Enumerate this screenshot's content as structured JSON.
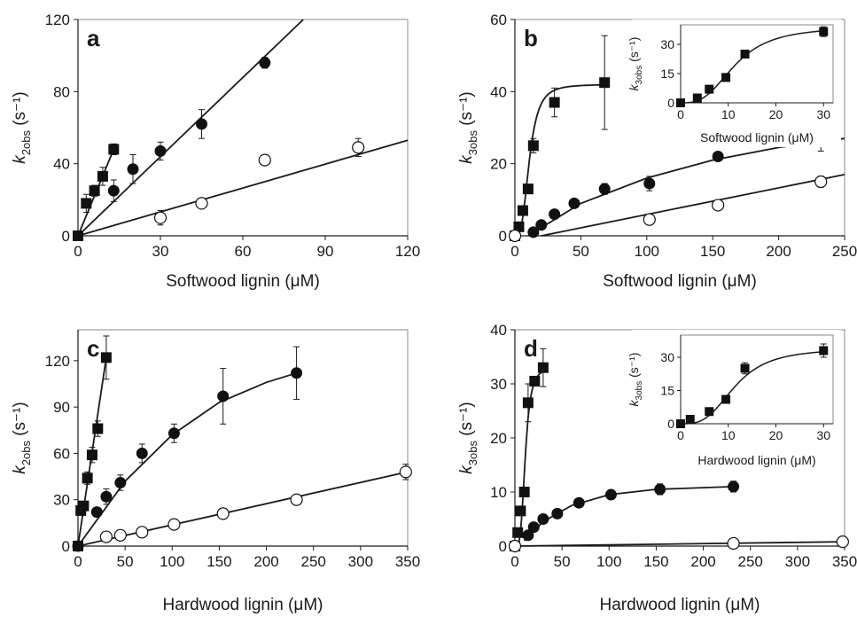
{
  "colors": {
    "axis": "#1a1a1a",
    "marker_filled": "#111111",
    "marker_open_fill": "#ffffff"
  },
  "chart_data": [
    {
      "panel_label": "a",
      "type": "scatter",
      "xlabel": "Softwood lignin (μM)",
      "ylabel_main": "k",
      "ylabel_sub": "2obs",
      "ylabel_unit": " (s⁻¹)",
      "xlim": [
        0,
        120
      ],
      "ylim": [
        0,
        120
      ],
      "xticks": [
        0,
        30,
        60,
        90,
        120
      ],
      "yticks": [
        0,
        40,
        80,
        120
      ],
      "series": [
        {
          "marker": "square",
          "x": [
            0,
            3,
            6,
            9,
            13
          ],
          "y": [
            0,
            18,
            25,
            33,
            48
          ],
          "err": [
            0,
            5,
            3,
            5,
            3
          ],
          "fit": {
            "kind": "line",
            "x": [
              0,
              13
            ],
            "y": [
              0,
              48
            ]
          }
        },
        {
          "marker": "circle",
          "x": [
            13,
            20,
            30,
            45,
            68
          ],
          "y": [
            25,
            37,
            47,
            62,
            96
          ],
          "err": [
            6,
            8,
            5,
            8,
            3
          ],
          "fit": {
            "kind": "line",
            "x": [
              0,
              82
            ],
            "y": [
              0,
              120
            ]
          }
        },
        {
          "marker": "open-circle",
          "x": [
            30,
            45,
            68,
            102
          ],
          "y": [
            10,
            18,
            42,
            49
          ],
          "err": [
            4,
            0,
            0,
            5
          ],
          "fit": {
            "kind": "line",
            "x": [
              0,
              120
            ],
            "y": [
              0,
              53
            ]
          }
        }
      ]
    },
    {
      "panel_label": "b",
      "type": "scatter",
      "xlabel": "Softwood lignin (μM)",
      "ylabel_main": "k",
      "ylabel_sub": "3obs",
      "ylabel_unit": " (s⁻¹)",
      "xlim": [
        0,
        250
      ],
      "ylim": [
        0,
        60
      ],
      "xticks": [
        0,
        50,
        100,
        150,
        200,
        250
      ],
      "yticks": [
        0,
        20,
        40,
        60
      ],
      "series": [
        {
          "marker": "square",
          "x": [
            0,
            3,
            6,
            10,
            14,
            30,
            68
          ],
          "y": [
            0,
            2.5,
            7,
            13,
            25,
            37,
            42.5
          ],
          "err": [
            0,
            0,
            0,
            0,
            2,
            4,
            13
          ],
          "fit": {
            "kind": "hill",
            "vmax": 42,
            "k": 11,
            "n": 3.2,
            "x0": 0,
            "x1": 68
          }
        },
        {
          "marker": "circle",
          "x": [
            14,
            20,
            30,
            45,
            68,
            102,
            154,
            232
          ],
          "y": [
            1,
            3,
            6,
            9,
            13,
            14.5,
            22,
            26.5
          ],
          "err": [
            0,
            0,
            0,
            0,
            1.5,
            2,
            0,
            3
          ],
          "fit": {
            "kind": "curve",
            "x": [
              10,
              50,
              100,
              150,
              200,
              250
            ],
            "y": [
              0,
              9,
              16,
              21,
              24.5,
              27
            ]
          }
        },
        {
          "marker": "open-circle",
          "x": [
            0,
            102,
            154,
            232
          ],
          "y": [
            0,
            4.5,
            8.5,
            15
          ],
          "err": [
            0,
            0,
            0,
            1.5
          ],
          "fit": {
            "kind": "line",
            "x": [
              20,
              250
            ],
            "y": [
              0,
              17
            ]
          }
        }
      ],
      "inset": {
        "xlabel": "Softwood lignin (μM)",
        "ylabel_main": "k",
        "ylabel_sub": "3obs",
        "ylabel_unit": " (s⁻¹)",
        "xlim": [
          0,
          32
        ],
        "ylim": [
          0,
          40
        ],
        "xticks": [
          0,
          10,
          20,
          30
        ],
        "yticks": [
          0,
          15,
          30
        ],
        "series": [
          {
            "marker": "square",
            "x": [
              0,
              3.5,
              6,
              9.5,
              13.5,
              30
            ],
            "y": [
              0,
              2.5,
              7,
              13,
              25,
              36.5
            ],
            "err": [
              0,
              0,
              0,
              0,
              0,
              2.5
            ],
            "fit": {
              "kind": "hill",
              "vmax": 39,
              "k": 11.5,
              "n": 3,
              "x0": 0,
              "x1": 30
            }
          }
        ]
      }
    },
    {
      "panel_label": "c",
      "type": "scatter",
      "xlabel": "Hardwood lignin (μM)",
      "ylabel_main": "k",
      "ylabel_sub": "2obs",
      "ylabel_unit": " (s⁻¹)",
      "xlim": [
        0,
        350
      ],
      "ylim": [
        0,
        140
      ],
      "xticks": [
        0,
        50,
        100,
        150,
        200,
        250,
        300,
        350
      ],
      "yticks": [
        0,
        30,
        60,
        90,
        120
      ],
      "series": [
        {
          "marker": "square",
          "x": [
            0,
            3,
            6,
            10,
            15,
            21,
            30
          ],
          "y": [
            0,
            23,
            26,
            44,
            59,
            76,
            122
          ],
          "err": [
            0,
            0,
            0,
            4,
            5,
            5,
            14
          ],
          "fit": {
            "kind": "line",
            "x": [
              0,
              30
            ],
            "y": [
              0,
              122
            ]
          }
        },
        {
          "marker": "circle",
          "x": [
            0,
            20,
            30,
            45,
            68,
            102,
            154,
            232
          ],
          "y": [
            0,
            22,
            32,
            41,
            60,
            73,
            97,
            112
          ],
          "err": [
            0,
            0,
            5,
            5,
            6,
            6,
            18,
            17
          ],
          "fit": {
            "kind": "curve",
            "x": [
              0,
              50,
              100,
              150,
              200,
              232
            ],
            "y": [
              0,
              42,
              72,
              93,
              106,
              112
            ]
          }
        },
        {
          "marker": "open-circle",
          "x": [
            30,
            45,
            68,
            102,
            154,
            232,
            348
          ],
          "y": [
            6,
            7,
            9,
            14,
            21,
            30,
            48
          ],
          "err": [
            0,
            0,
            0,
            0,
            0,
            0,
            5
          ],
          "fit": {
            "kind": "line",
            "x": [
              0,
              350
            ],
            "y": [
              0,
              48
            ]
          }
        }
      ]
    },
    {
      "panel_label": "d",
      "type": "scatter",
      "xlabel": "Hardwood lignin (μM)",
      "ylabel_main": "k",
      "ylabel_sub": "3obs",
      "ylabel_unit": " (s⁻¹)",
      "xlim": [
        0,
        350
      ],
      "ylim": [
        0,
        40
      ],
      "xticks": [
        0,
        50,
        100,
        150,
        200,
        250,
        300,
        350
      ],
      "yticks": [
        0,
        10,
        20,
        30,
        40
      ],
      "series": [
        {
          "marker": "square",
          "x": [
            0,
            3,
            6,
            10,
            14,
            21,
            30
          ],
          "y": [
            0,
            2.5,
            6.5,
            10,
            26.5,
            30.5,
            33
          ],
          "err": [
            0,
            0,
            0,
            0,
            3.5,
            0,
            3.5
          ],
          "fit": {
            "kind": "hill",
            "vmax": 33,
            "k": 11,
            "n": 3.8,
            "x0": 0,
            "x1": 30
          }
        },
        {
          "marker": "circle",
          "x": [
            14,
            20,
            30,
            45,
            68,
            102,
            154,
            232
          ],
          "y": [
            2,
            3.5,
            5,
            6,
            8,
            9.5,
            10.5,
            11
          ],
          "err": [
            0,
            0,
            0,
            0,
            0,
            0,
            1,
            1
          ],
          "fit": {
            "kind": "curve",
            "x": [
              10,
              30,
              60,
              100,
              150,
              232
            ],
            "y": [
              1,
              4.5,
              7.5,
              9.5,
              10.5,
              11
            ]
          }
        },
        {
          "marker": "open-circle",
          "x": [
            0,
            232,
            348
          ],
          "y": [
            0,
            0.5,
            0.8
          ],
          "err": [
            0,
            0,
            0
          ],
          "fit": {
            "kind": "line",
            "x": [
              0,
              350
            ],
            "y": [
              0,
              0.8
            ]
          }
        }
      ],
      "inset": {
        "xlabel": "Hardwood lignin (μM)",
        "ylabel_main": "k",
        "ylabel_sub": "3obs",
        "ylabel_unit": " (s⁻¹)",
        "xlim": [
          0,
          32
        ],
        "ylim": [
          0,
          40
        ],
        "xticks": [
          0,
          10,
          20,
          30
        ],
        "yticks": [
          0,
          15,
          30
        ],
        "series": [
          {
            "marker": "square",
            "x": [
              0,
              2,
              6,
              9.5,
              13.5,
              30
            ],
            "y": [
              0,
              2,
              5.5,
              11,
              25,
              33
            ],
            "err": [
              0,
              0,
              0,
              0,
              2.5,
              3
            ],
            "fit": {
              "kind": "hill",
              "vmax": 34,
              "k": 11.5,
              "n": 3.2,
              "x0": 0,
              "x1": 30
            }
          }
        ]
      }
    }
  ]
}
